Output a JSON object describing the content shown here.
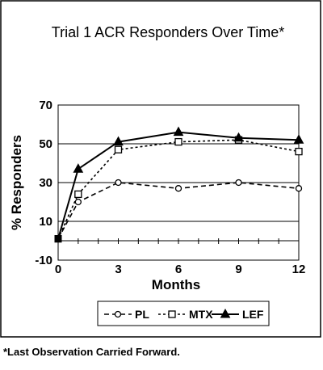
{
  "chart_data": {
    "type": "line",
    "title": "Trial 1 ACR Responders Over Time*",
    "xlabel": "Months",
    "ylabel": "% Responders",
    "x": [
      0,
      1,
      3,
      6,
      9,
      12
    ],
    "x_ticks": [
      0,
      3,
      6,
      9,
      12
    ],
    "y_ticks": [
      -10,
      10,
      30,
      50,
      70
    ],
    "ylim": [
      -10,
      70
    ],
    "xlim": [
      0,
      12
    ],
    "gridlines_y": [
      10,
      30,
      50
    ],
    "legend_position": "bottom",
    "series": [
      {
        "name": "PL",
        "marker": "circle",
        "dash": "dashed",
        "values": [
          1,
          20,
          30,
          27,
          30,
          27
        ]
      },
      {
        "name": "MTX",
        "marker": "square",
        "dash": "dotted",
        "values": [
          1,
          24,
          47,
          51,
          52,
          46
        ]
      },
      {
        "name": "LEF",
        "marker": "triangle",
        "dash": "solid",
        "values": [
          1,
          37,
          51,
          56,
          53,
          52
        ]
      }
    ]
  },
  "footnote": "*Last Observation Carried Forward."
}
